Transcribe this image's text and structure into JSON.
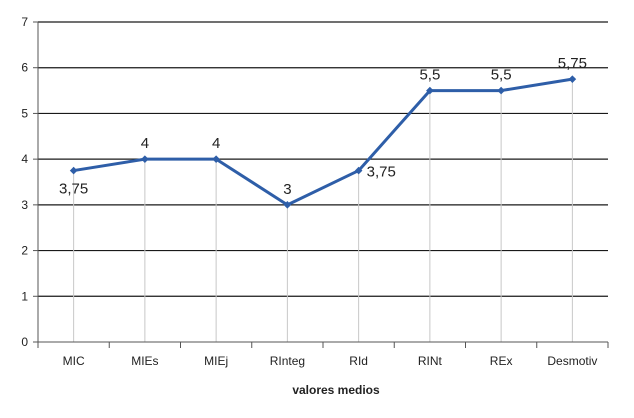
{
  "chart_data": {
    "type": "line",
    "categories": [
      "MIC",
      "MIEs",
      "MIEj",
      "RInteg",
      "RId",
      "RINt",
      "REx",
      "Desmotiv"
    ],
    "series": [
      {
        "values": [
          3.75,
          4,
          4,
          3,
          3.75,
          5.5,
          5.5,
          5.75
        ],
        "labels": [
          "3,75",
          "4",
          "4",
          "3",
          "3,75",
          "5,5",
          "5,5",
          "5,75"
        ],
        "color": "#2e5ea8"
      }
    ],
    "y_ticks": [
      "0",
      "1",
      "2",
      "3",
      "4",
      "5",
      "6",
      "7"
    ],
    "ylim": [
      0,
      7
    ],
    "xlabel": "valores medios",
    "ylabel": "",
    "grid": true,
    "drop_lines": true
  }
}
